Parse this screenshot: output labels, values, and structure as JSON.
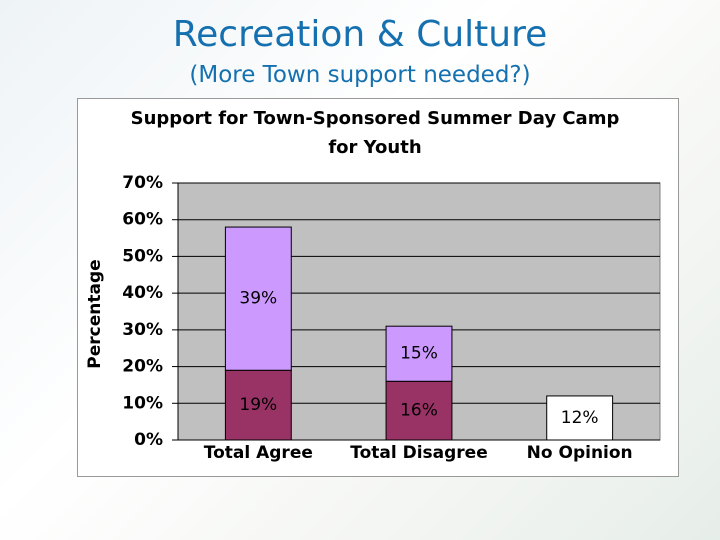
{
  "slide": {
    "title": "Recreation & Culture",
    "subtitle": "(More Town support needed?)"
  },
  "chart_data": {
    "type": "bar",
    "stacked": true,
    "title": "Support for Town-Sponsored Summer Day Camp for Youth",
    "y_label": "Percentage",
    "categories": [
      "Total Agree",
      "Total Disagree",
      "No Opinion"
    ],
    "series": [
      {
        "color": "#993366",
        "values": [
          19,
          16,
          null
        ],
        "value_labels": [
          "19%",
          "16%",
          null
        ]
      },
      {
        "color": "#cc99ff",
        "values": [
          39,
          15,
          null
        ],
        "value_labels": [
          "39%",
          "15%",
          null
        ]
      },
      {
        "color": "#ffffff",
        "values": [
          null,
          null,
          12
        ],
        "value_labels": [
          null,
          null,
          "12%"
        ]
      }
    ],
    "ylim": [
      0,
      70
    ],
    "yticks": [
      {
        "value": 0,
        "label": "0%"
      },
      {
        "value": 10,
        "label": "10%"
      },
      {
        "value": 20,
        "label": "20%"
      },
      {
        "value": 30,
        "label": "30%"
      },
      {
        "value": 40,
        "label": "40%"
      },
      {
        "value": 50,
        "label": "50%"
      },
      {
        "value": 60,
        "label": "60%"
      },
      {
        "value": 70,
        "label": "70%"
      }
    ],
    "grid": true,
    "plot_background": "#c0c0c0"
  }
}
